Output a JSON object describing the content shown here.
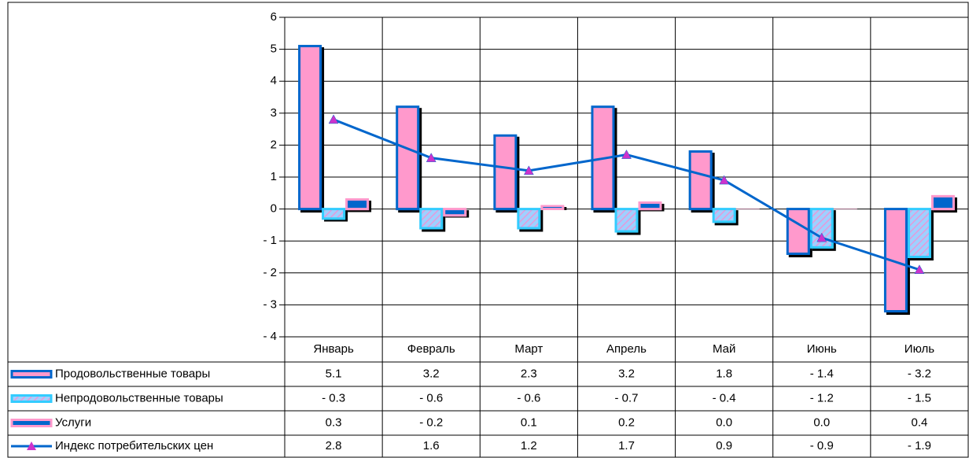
{
  "chart_data": {
    "type": "bar",
    "categories": [
      "Январь",
      "Февраль",
      "Март",
      "Апрель",
      "Май",
      "Июнь",
      "Июль"
    ],
    "series": [
      {
        "name": "Продовольственные товары",
        "type": "bar",
        "color": "#ff99cc",
        "edgecolor": "#0066cc",
        "values": [
          5.1,
          3.2,
          2.3,
          3.2,
          1.8,
          -1.4,
          -3.2
        ],
        "value_labels": [
          "5.1",
          "3.2",
          "2.3",
          "3.2",
          "1.8",
          "- 1.4",
          "- 3.2"
        ]
      },
      {
        "name": "Непродовольственные товары",
        "type": "bar",
        "color": "#b3c6f5",
        "edgecolor": "#33ccff",
        "hatch": true,
        "values": [
          -0.3,
          -0.6,
          -0.6,
          -0.7,
          -0.4,
          -1.2,
          -1.5
        ],
        "value_labels": [
          "- 0.3",
          "- 0.6",
          "- 0.6",
          "- 0.7",
          "- 0.4",
          "- 1.2",
          "- 1.5"
        ]
      },
      {
        "name": "Услуги",
        "type": "bar",
        "color": "#0066cc",
        "edgecolor": "#ff99cc",
        "values": [
          0.3,
          -0.2,
          0.1,
          0.2,
          0,
          0,
          0.4
        ],
        "value_labels": [
          "0.3",
          "- 0.2",
          "0.1",
          "0.2",
          "0.0",
          "0.0",
          "0.4"
        ]
      },
      {
        "name": "Индекс потребительских цен",
        "type": "line",
        "color": "#0066cc",
        "marker_color": "#cc33cc",
        "values": [
          2.8,
          1.6,
          1.2,
          1.7,
          0.9,
          -0.9,
          -1.9
        ],
        "value_labels": [
          "2.8",
          "1.6",
          "1.2",
          "1.7",
          "0.9",
          "- 0.9",
          "- 1.9"
        ]
      }
    ],
    "ylim": [
      -4,
      6
    ],
    "yticks": [
      {
        "value": -4,
        "label": "- 4"
      },
      {
        "value": -3,
        "label": "- 3"
      },
      {
        "value": -2,
        "label": "- 2"
      },
      {
        "value": -1,
        "label": "- 1"
      },
      0,
      1,
      2,
      3,
      4,
      5,
      6
    ],
    "grid": true
  }
}
